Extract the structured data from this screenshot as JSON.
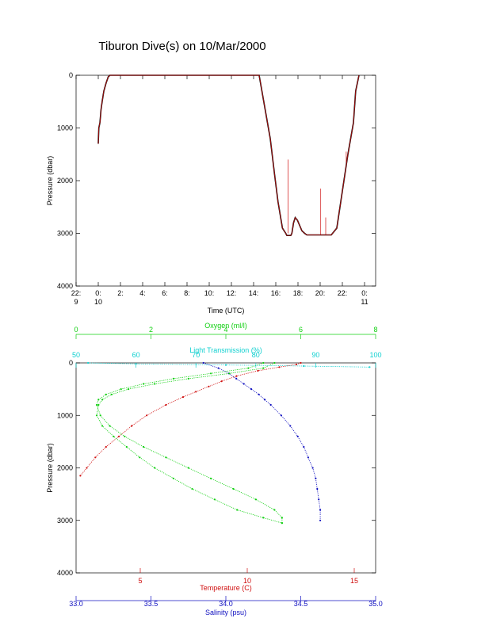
{
  "title": "Tiburon Dive(s) on 10/Mar/2000",
  "chart_data": [
    {
      "type": "line",
      "xlabel": "Time (UTC)",
      "ylabel": "Pressure (dbar)",
      "xlim": [
        22.0,
        49.0
      ],
      "ylim": [
        4000,
        0
      ],
      "x_ticks": [
        {
          "x": 22,
          "label": "22:",
          "sub": "9"
        },
        {
          "x": 24,
          "label": "0:",
          "sub": "10"
        },
        {
          "x": 26,
          "label": "2:",
          "sub": ""
        },
        {
          "x": 28,
          "label": "4:",
          "sub": ""
        },
        {
          "x": 30,
          "label": "6:",
          "sub": ""
        },
        {
          "x": 32,
          "label": "8:",
          "sub": ""
        },
        {
          "x": 34,
          "label": "10:",
          "sub": ""
        },
        {
          "x": 36,
          "label": "12:",
          "sub": ""
        },
        {
          "x": 38,
          "label": "14:",
          "sub": ""
        },
        {
          "x": 40,
          "label": "16:",
          "sub": ""
        },
        {
          "x": 42,
          "label": "18:",
          "sub": ""
        },
        {
          "x": 44,
          "label": "20:",
          "sub": ""
        },
        {
          "x": 46,
          "label": "22:",
          "sub": ""
        },
        {
          "x": 48,
          "label": "0:",
          "sub": "11"
        }
      ],
      "y_ticks": [
        0,
        1000,
        2000,
        3000,
        4000
      ],
      "series": [
        {
          "color": "#000000",
          "x": [
            24.0,
            24.05,
            24.1,
            24.15,
            24.25,
            24.35,
            24.5,
            24.7,
            24.9,
            25.05,
            38.5,
            39.5,
            39.9,
            40.2,
            40.6,
            40.9,
            41.0,
            41.35,
            41.45,
            41.6,
            41.75,
            41.95,
            42.15,
            42.35,
            42.6,
            42.8,
            43.0,
            44.0,
            45.0,
            45.5,
            46.0,
            46.5,
            47.0,
            47.2,
            47.5
          ],
          "y": [
            1300,
            1000,
            950,
            900,
            650,
            500,
            300,
            150,
            30,
            0,
            0,
            1200,
            1900,
            2400,
            2900,
            3000,
            3040,
            3040,
            3000,
            2800,
            2700,
            2750,
            2850,
            2950,
            3000,
            3030,
            3030,
            3030,
            3030,
            2900,
            2200,
            1500,
            900,
            300,
            0
          ]
        },
        {
          "color": "#d01010",
          "x": [
            24.0,
            24.05,
            24.1,
            24.15,
            24.25,
            24.35,
            24.5,
            24.7,
            24.9,
            25.05,
            38.5,
            39.5,
            39.9,
            40.2,
            40.6,
            40.9,
            41.0,
            41.35,
            41.45,
            41.6,
            41.75,
            41.95,
            42.15,
            42.35,
            42.6,
            42.8,
            43.0,
            44.0,
            45.0,
            45.5,
            46.0,
            46.5,
            47.0,
            47.2,
            47.5
          ],
          "y": [
            1300,
            1000,
            950,
            900,
            650,
            500,
            300,
            150,
            30,
            0,
            0,
            1200,
            1900,
            2400,
            2900,
            3000,
            3040,
            3040,
            3000,
            2800,
            2700,
            2750,
            2850,
            2950,
            3000,
            3030,
            3030,
            3030,
            3030,
            2900,
            2200,
            1500,
            900,
            300,
            0
          ]
        }
      ],
      "spikes": [
        {
          "x": 41.1,
          "y_top": 1600,
          "y_bottom": 3000
        },
        {
          "x": 44.05,
          "y_top": 2150,
          "y_bottom": 3030
        },
        {
          "x": 44.5,
          "y_top": 2700,
          "y_bottom": 3030
        },
        {
          "x": 46.35,
          "y_top": 1450,
          "y_bottom": 1700
        }
      ]
    },
    {
      "type": "scatter",
      "ylabel": "Pressure (dbar)",
      "ylim": [
        4000,
        0
      ],
      "y_ticks": [
        0,
        1000,
        2000,
        3000,
        4000
      ],
      "axes": [
        {
          "key": "oxygen",
          "label": "Oxygen (ml/l)",
          "color": "#10d010",
          "position": "top-outer",
          "range": [
            0,
            8
          ],
          "ticks": [
            0,
            2,
            4,
            6,
            8
          ]
        },
        {
          "key": "light",
          "label": "Light Transmission (%)",
          "color": "#10d0d0",
          "position": "top-inner",
          "range": [
            50,
            100
          ],
          "ticks": [
            50,
            60,
            70,
            80,
            90,
            100
          ]
        },
        {
          "key": "temperature",
          "label": "Temperature (C)",
          "color": "#d01010",
          "position": "bottom-inner",
          "range": [
            2,
            16
          ],
          "ticks": [
            5,
            10,
            15
          ]
        },
        {
          "key": "salinity",
          "label": "Salinity (psu)",
          "color": "#1010c0",
          "position": "bottom-outer",
          "range": [
            33.0,
            35.0
          ],
          "ticks": [
            33.0,
            33.5,
            34.0,
            34.5,
            35.0
          ],
          "tick_labels": [
            "33.0",
            "33.5",
            "34.0",
            "34.5",
            "35.0"
          ]
        }
      ],
      "series": [
        {
          "axis": "temperature",
          "color": "#d01010",
          "pressure": [
            0,
            30,
            80,
            150,
            250,
            350,
            450,
            550,
            650,
            800,
            1000,
            1200,
            1400,
            1600,
            1800,
            2000,
            2150
          ],
          "value": [
            12.5,
            12.3,
            11.5,
            10.5,
            9.5,
            8.8,
            8.2,
            7.6,
            7.0,
            6.2,
            5.3,
            4.6,
            4.0,
            3.4,
            2.9,
            2.5,
            2.2
          ]
        },
        {
          "axis": "salinity",
          "color": "#1010c0",
          "pressure": [
            0,
            100,
            200,
            300,
            400,
            500,
            600,
            700,
            800,
            1000,
            1200,
            1400,
            1600,
            1800,
            2000,
            2200,
            2400,
            2600,
            2800,
            3000
          ],
          "value": [
            33.85,
            33.95,
            34.02,
            34.07,
            34.12,
            34.17,
            34.22,
            34.26,
            34.3,
            34.37,
            34.43,
            34.48,
            34.52,
            34.55,
            34.58,
            34.6,
            34.61,
            34.62,
            34.63,
            34.63
          ]
        },
        {
          "axis": "oxygen",
          "color": "#10d010",
          "pressure": [
            0,
            100,
            200,
            300,
            400,
            500,
            600,
            700,
            800,
            1000,
            1200,
            1400,
            1600,
            1800,
            2000,
            2200,
            2400,
            2600,
            2800,
            2950,
            3050
          ],
          "value": [
            5.0,
            4.6,
            3.6,
            2.6,
            1.8,
            1.2,
            0.8,
            0.6,
            0.55,
            0.65,
            0.9,
            1.3,
            1.8,
            2.4,
            3.0,
            3.6,
            4.2,
            4.8,
            5.3,
            5.5,
            5.5
          ]
        },
        {
          "axis": "oxygen",
          "color": "#10d010",
          "pressure": [
            0,
            100,
            200,
            300,
            400,
            500,
            600,
            700,
            800,
            1000,
            1200,
            1400,
            1600,
            1800,
            2000,
            2200,
            2400,
            2600,
            2800,
            2950,
            3050
          ],
          "value": [
            5.3,
            5.0,
            4.1,
            3.0,
            2.1,
            1.4,
            0.95,
            0.7,
            0.6,
            0.55,
            0.7,
            1.0,
            1.35,
            1.7,
            2.1,
            2.6,
            3.1,
            3.7,
            4.3,
            5.0,
            5.5
          ]
        },
        {
          "axis": "light",
          "color": "#10d0d0",
          "pressure": [
            0,
            20,
            40,
            60,
            80
          ],
          "value": [
            52,
            60,
            75,
            88,
            99
          ]
        }
      ]
    }
  ]
}
